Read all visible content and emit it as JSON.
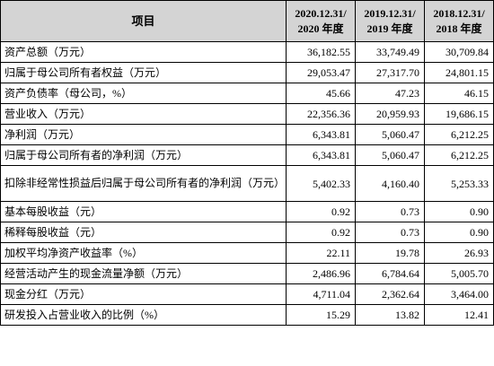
{
  "header": {
    "item": "项目",
    "columns": [
      {
        "line1": "2020.12.31/",
        "line2": "2020 年度"
      },
      {
        "line1": "2019.12.31/",
        "line2": "2019 年度"
      },
      {
        "line1": "2018.12.31/",
        "line2": "2018 年度"
      }
    ]
  },
  "rows": [
    {
      "label": "资产总额（万元）",
      "values": [
        "36,182.55",
        "33,749.49",
        "30,709.84"
      ]
    },
    {
      "label": "归属于母公司所有者权益（万元）",
      "values": [
        "29,053.47",
        "27,317.70",
        "24,801.15"
      ]
    },
    {
      "label": "资产负债率（母公司，%）",
      "values": [
        "45.66",
        "47.23",
        "46.15"
      ]
    },
    {
      "label": "营业收入（万元）",
      "values": [
        "22,356.36",
        "20,959.93",
        "19,686.15"
      ]
    },
    {
      "label": "净利润（万元）",
      "values": [
        "6,343.81",
        "5,060.47",
        "6,212.25"
      ]
    },
    {
      "label": "归属于母公司所有者的净利润（万元）",
      "values": [
        "6,343.81",
        "5,060.47",
        "6,212.25"
      ]
    },
    {
      "label": "扣除非经常性损益后归属于母公司所有者的净利润（万元）",
      "values": [
        "5,402.33",
        "4,160.40",
        "5,253.33"
      ]
    },
    {
      "label": "基本每股收益（元）",
      "values": [
        "0.92",
        "0.73",
        "0.90"
      ]
    },
    {
      "label": "稀释每股收益（元）",
      "values": [
        "0.92",
        "0.73",
        "0.90"
      ]
    },
    {
      "label": "加权平均净资产收益率（%）",
      "values": [
        "22.11",
        "19.78",
        "26.93"
      ]
    },
    {
      "label": "经营活动产生的现金流量净额（万元）",
      "values": [
        "2,486.96",
        "6,784.64",
        "5,005.70"
      ]
    },
    {
      "label": "现金分红（万元）",
      "values": [
        "4,711.04",
        "2,362.64",
        "3,464.00"
      ]
    },
    {
      "label": "研发投入占营业收入的比例（%）",
      "values": [
        "15.29",
        "13.82",
        "12.41"
      ]
    }
  ],
  "colors": {
    "header_bg": "#d4d4d4",
    "border": "#000000",
    "text": "#000000"
  }
}
